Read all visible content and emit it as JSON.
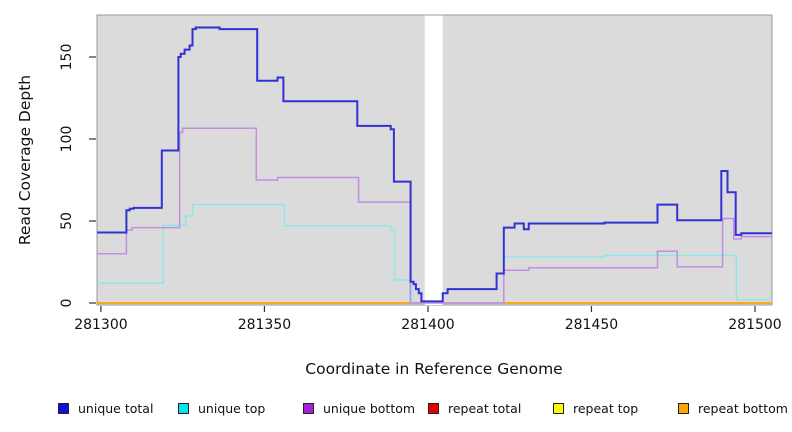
{
  "chart_data": {
    "type": "line",
    "subtype": "step-after-coverage",
    "title": "",
    "xlabel": "Coordinate in Reference Genome",
    "ylabel": "Read Coverage Depth",
    "xlim": [
      281298.8,
      281505.2
    ],
    "ylim": [
      -1,
      175
    ],
    "x_ticks": [
      "281300",
      "281350",
      "281400",
      "281450",
      "281500"
    ],
    "x_tick_values": [
      281300,
      281350,
      281400,
      281450,
      281500
    ],
    "y_ticks": [
      "0",
      "50",
      "100",
      "150"
    ],
    "y_tick_values": [
      0,
      50,
      100,
      150
    ],
    "grid": false,
    "panel_background": "#dbdbdb",
    "panel_border_color": "#9a9a9a",
    "masked_region": {
      "x_start": 281399.0,
      "x_end": 281404.5,
      "color": "#ffffff",
      "insert_before_series": "unique bottom"
    },
    "legend_position": "bottom",
    "series": [
      {
        "name": "repeat total",
        "color": "#e60000",
        "width": 1.3,
        "points": [
          [
            281298.8,
            0
          ]
        ]
      },
      {
        "name": "repeat top",
        "color": "#f5f500",
        "width": 1.3,
        "points": [
          [
            281298.8,
            0
          ]
        ]
      },
      {
        "name": "repeat bottom",
        "color": "#ffa500",
        "width": 1.4,
        "points": [
          [
            281298.8,
            0
          ]
        ]
      },
      {
        "name": "unique top",
        "color": "#89e8e8",
        "width": 1.4,
        "points": [
          [
            281298.8,
            12
          ],
          [
            281319.0,
            47.5
          ],
          [
            281325.9,
            53
          ],
          [
            281328.0,
            60
          ],
          [
            281356.1,
            47
          ],
          [
            281388.6,
            44.5
          ],
          [
            281389.8,
            14
          ],
          [
            281395.0,
            0
          ],
          [
            281423.2,
            28
          ],
          [
            281454.0,
            29
          ],
          [
            281494.3,
            2
          ]
        ]
      },
      {
        "name": "unique bottom",
        "color": "#c18ee4",
        "width": 1.5,
        "points": [
          [
            281298.8,
            30
          ],
          [
            281307.8,
            44.5
          ],
          [
            281309.5,
            46
          ],
          [
            281324.1,
            104
          ],
          [
            281325.0,
            106.5
          ],
          [
            281347.5,
            75
          ],
          [
            281354.0,
            76.5
          ],
          [
            281378.8,
            61.5
          ],
          [
            281394.6,
            0
          ],
          [
            281423.2,
            20
          ],
          [
            281430.8,
            21.5
          ],
          [
            281470.2,
            31.5
          ],
          [
            281476.2,
            22
          ],
          [
            281490.1,
            51.5
          ],
          [
            281493.5,
            39
          ],
          [
            281495.8,
            40.5
          ]
        ]
      },
      {
        "name": "unique total",
        "color": "#3232d4",
        "width": 2,
        "points": [
          [
            281298.8,
            43
          ],
          [
            281307.8,
            56.5
          ],
          [
            281308.8,
            57.5
          ],
          [
            281310.0,
            58
          ],
          [
            281318.6,
            93
          ],
          [
            281323.7,
            150
          ],
          [
            281324.4,
            152
          ],
          [
            281325.6,
            154.5
          ],
          [
            281327.1,
            157
          ],
          [
            281328.0,
            167
          ],
          [
            281329.0,
            168
          ],
          [
            281336.3,
            167
          ],
          [
            281347.8,
            135.5
          ],
          [
            281354.0,
            137.5
          ],
          [
            281355.8,
            123
          ],
          [
            281378.4,
            108
          ],
          [
            281388.6,
            106
          ],
          [
            281389.6,
            74
          ],
          [
            281394.7,
            13
          ],
          [
            281395.6,
            11.5
          ],
          [
            281396.3,
            8.5
          ],
          [
            281397.2,
            6
          ],
          [
            281398.0,
            1
          ],
          [
            281404.5,
            6
          ],
          [
            281406.0,
            8.5
          ],
          [
            281421.0,
            18
          ],
          [
            281423.2,
            46
          ],
          [
            281426.5,
            48.5
          ],
          [
            281429.3,
            45
          ],
          [
            281430.8,
            48.5
          ],
          [
            281454.0,
            49
          ],
          [
            281470.2,
            60
          ],
          [
            281476.2,
            50.5
          ],
          [
            281489.7,
            80.5
          ],
          [
            281491.6,
            67.5
          ],
          [
            281494.1,
            41.5
          ],
          [
            281495.8,
            42.5
          ]
        ]
      }
    ],
    "legend": [
      {
        "label": "unique total",
        "color": "#1111dd"
      },
      {
        "label": "unique top",
        "color": "#00e5e5"
      },
      {
        "label": "unique bottom",
        "color": "#a124dc"
      },
      {
        "label": "repeat total",
        "color": "#e60000"
      },
      {
        "label": "repeat top",
        "color": "#fcfc00"
      },
      {
        "label": "repeat bottom",
        "color": "#ffa500"
      }
    ]
  },
  "layout_note_values": {
    "legend_item_x": [
      58,
      178,
      303,
      428,
      553,
      678
    ],
    "legend_y": 402
  }
}
